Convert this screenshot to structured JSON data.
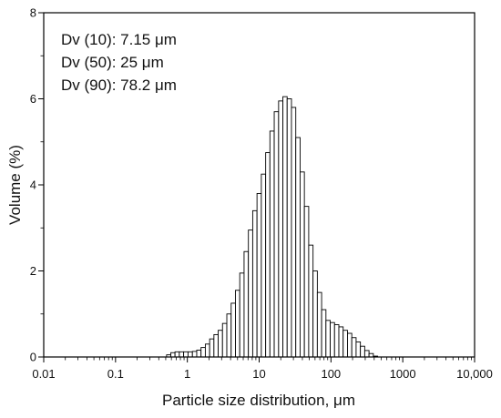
{
  "chart_data": {
    "type": "bar",
    "xscale": "log",
    "xlabel": "Particle size distribution, μm",
    "ylabel": "Volume (%)",
    "xlim": [
      0.01,
      10000
    ],
    "ylim": [
      0,
      8
    ],
    "grid": false,
    "legend": "none",
    "xticks": [
      0.01,
      0.1,
      1,
      10,
      100,
      1000,
      10000
    ],
    "xtick_labels": [
      "0.01",
      "0.1",
      "1",
      "10",
      "100",
      "1000",
      "10,000"
    ],
    "yticks": [
      0,
      2,
      4,
      6,
      8
    ],
    "ytick_labels": [
      "0",
      "2",
      "4",
      "6",
      "8"
    ],
    "annotations": [
      "Dv (10): 7.15 μm",
      "Dv (50): 25 μm",
      "Dv (90): 78.2 μm"
    ],
    "bar_fill": "#ffffff",
    "bar_stroke": "#000000",
    "x": [
      0.55,
      0.63,
      0.72,
      0.83,
      0.95,
      1.1,
      1.26,
      1.45,
      1.66,
      1.91,
      2.19,
      2.51,
      2.88,
      3.31,
      3.8,
      4.37,
      5.01,
      5.75,
      6.61,
      7.59,
      8.71,
      10.0,
      11.5,
      13.2,
      15.1,
      17.4,
      20.0,
      22.9,
      26.3,
      30.2,
      34.7,
      39.8,
      45.7,
      52.5,
      60.3,
      69.2,
      79.4,
      91.2,
      104.7,
      120.2,
      138.0,
      158.5,
      182.0,
      208.9,
      239.9,
      275.4,
      316.2,
      363.1,
      416.9
    ],
    "values": [
      0.05,
      0.1,
      0.12,
      0.12,
      0.12,
      0.12,
      0.13,
      0.16,
      0.22,
      0.3,
      0.42,
      0.52,
      0.62,
      0.78,
      1.0,
      1.25,
      1.55,
      1.95,
      2.45,
      2.95,
      3.4,
      3.8,
      4.25,
      4.75,
      5.25,
      5.7,
      5.95,
      6.05,
      6.0,
      5.8,
      5.1,
      4.3,
      3.5,
      2.6,
      2.0,
      1.5,
      1.1,
      0.85,
      0.8,
      0.75,
      0.7,
      0.62,
      0.55,
      0.45,
      0.35,
      0.25,
      0.15,
      0.08,
      0.02
    ]
  }
}
